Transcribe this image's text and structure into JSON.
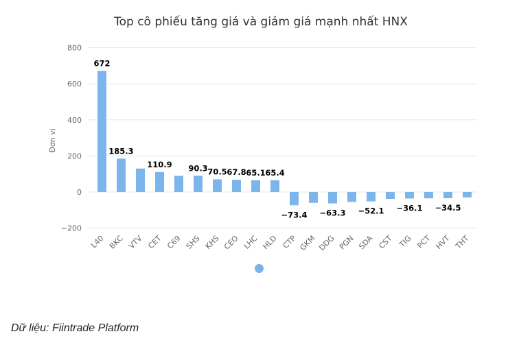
{
  "title": "Top cô phiếu tăng giá và giảm giá mạnh nhất HNX",
  "source": "Dữ liệu: Fiintrade Platform",
  "colors": {
    "bar": "#7cb5ec",
    "grid": "#e6e6e6",
    "label": "#000000",
    "axis_text": "#666666"
  },
  "chart_data": {
    "type": "bar",
    "title": "Top cô phiếu tăng giá và giảm giá mạnh nhất HNX",
    "xlabel": "",
    "ylabel": "Đơn vị",
    "ylim": [
      -200,
      800
    ],
    "yticks": [
      800,
      600,
      400,
      200,
      0,
      -200
    ],
    "grid": true,
    "legend": false,
    "categories": [
      "L40",
      "BKC",
      "VTV",
      "CET",
      "C69",
      "SHS",
      "KHS",
      "CEO",
      "LHC",
      "HLD",
      "CTP",
      "GKM",
      "DDG",
      "PGN",
      "SDA",
      "CST",
      "TIG",
      "PCT",
      "HVT",
      "THT"
    ],
    "values": [
      672,
      185.3,
      130,
      110.9,
      90,
      90.3,
      70.5,
      67.8,
      65.1,
      65.4,
      -73.4,
      -60,
      -63.3,
      -55,
      -52.1,
      -38,
      -36.1,
      -35,
      -34.5,
      -30
    ],
    "data_labels": [
      "672",
      "185.3",
      "",
      "110.9",
      "",
      "90.3",
      "70.5",
      "67.8",
      "65.1",
      "65.4",
      "−73.4",
      "",
      "−63.3",
      "",
      "−52.1",
      "",
      "−36.1",
      "",
      "−34.5",
      ""
    ]
  }
}
